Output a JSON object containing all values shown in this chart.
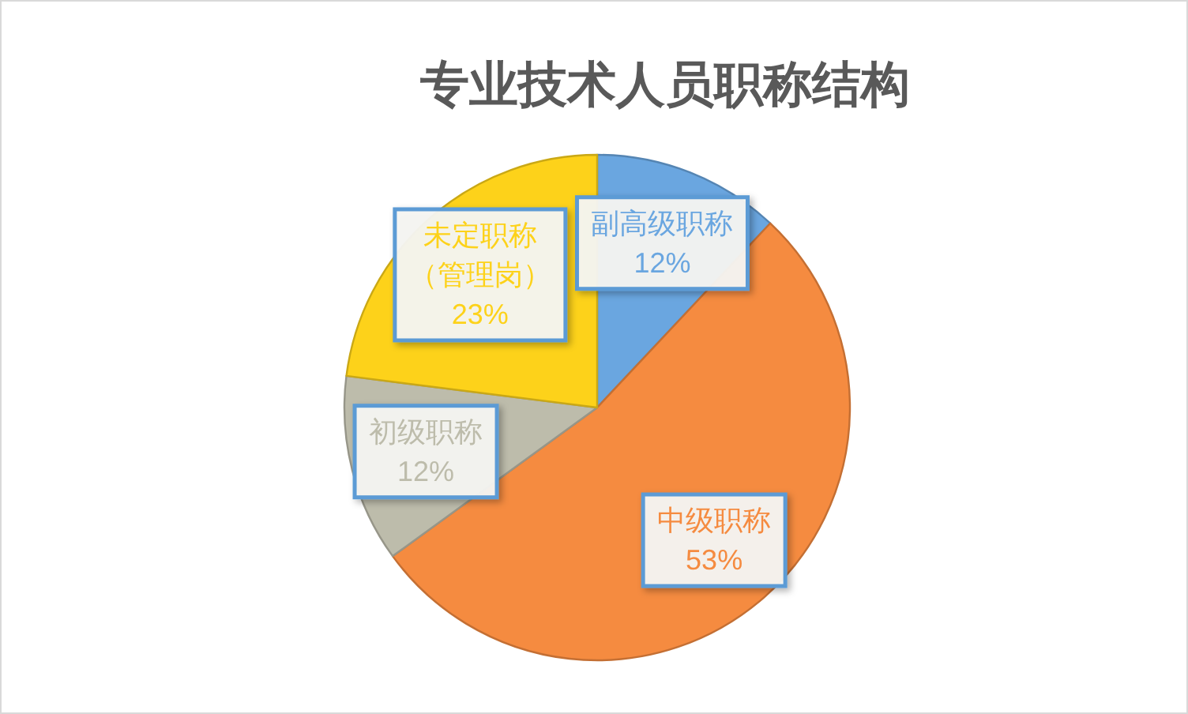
{
  "chart_data": {
    "type": "pie",
    "title": "专业技术人员职称结构",
    "categories": [
      "副高级职称",
      "中级职称",
      "初级职称",
      "未定职称（管理岗）"
    ],
    "values": [
      12,
      53,
      12,
      23
    ],
    "colors": [
      "#6aa6e0",
      "#f58b40",
      "#bdbcab",
      "#fdd21a"
    ],
    "value_labels": [
      "12%",
      "53%",
      "12%",
      "23%"
    ]
  }
}
